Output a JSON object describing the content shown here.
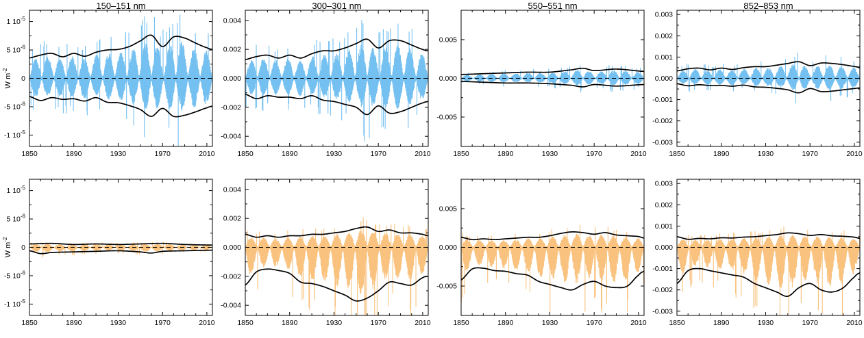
{
  "colors": {
    "top_fill": "#74c0f0",
    "bottom_fill": "#f9c27e",
    "envelope": "#000000",
    "zero_line": "#000000"
  },
  "column_titles": [
    "150–151 nm",
    "300–301 nm",
    "550–551 nm",
    "852–853 nm"
  ],
  "ylabel": {
    "text": "W m",
    "sup": "-2"
  },
  "chart_data": [
    {
      "type": "area",
      "row": 0,
      "col": 0,
      "title": "150–151 nm",
      "xlim": [
        1850,
        2015
      ],
      "ylim": [
        -1.2e-05,
        1.2e-05
      ],
      "xticks": [
        1850,
        1890,
        1930,
        1970,
        2010
      ],
      "yticks": [
        {
          "value": 1e-05,
          "base": "1 10",
          "exp": "-5"
        },
        {
          "value": 5e-06,
          "base": "5 10",
          "exp": "-6"
        },
        {
          "value": 0,
          "base": "0",
          "exp": ""
        },
        {
          "value": -5e-06,
          "base": "-5 10",
          "exp": "-6"
        },
        {
          "value": -1e-05,
          "base": "-1 10",
          "exp": "-5"
        }
      ],
      "upper_envelope": {
        "x": [
          1850,
          1860,
          1870,
          1880,
          1890,
          1900,
          1910,
          1920,
          1930,
          1940,
          1950,
          1960,
          1970,
          1980,
          1990,
          2000,
          2010,
          2015
        ],
        "y": [
          3.6e-06,
          4.1e-06,
          4.4e-06,
          3.8e-06,
          4.4e-06,
          3.9e-06,
          4.6e-06,
          5e-06,
          5.1e-06,
          5.6e-06,
          6.6e-06,
          7.6e-06,
          5.6e-06,
          7.3e-06,
          7.1e-06,
          6.2e-06,
          5.4e-06,
          5.1e-06
        ]
      },
      "lower_envelope": {
        "x": [
          1850,
          1860,
          1870,
          1880,
          1890,
          1900,
          1910,
          1920,
          1930,
          1940,
          1950,
          1960,
          1970,
          1980,
          1990,
          2000,
          2010,
          2015
        ],
        "y": [
          -3.2e-06,
          -3.9e-06,
          -3.4e-06,
          -3.7e-06,
          -3.6e-06,
          -4e-06,
          -3.4e-06,
          -4.2e-06,
          -4.3e-06,
          -4.8e-06,
          -5.5e-06,
          -6.7e-06,
          -5.3e-06,
          -6.7e-06,
          -6.5e-06,
          -5.9e-06,
          -5.2e-06,
          -4.9e-06
        ]
      },
      "fill_color": "#74c0f0"
    },
    {
      "type": "area",
      "row": 0,
      "col": 1,
      "title": "300–301 nm",
      "xlim": [
        1850,
        2015
      ],
      "ylim": [
        -0.0047,
        0.0047
      ],
      "xticks": [
        1850,
        1890,
        1930,
        1970,
        2010
      ],
      "yticks": [
        {
          "value": 0.004,
          "base": "0.004",
          "exp": ""
        },
        {
          "value": 0.002,
          "base": "0.002",
          "exp": ""
        },
        {
          "value": 0,
          "base": "0.000",
          "exp": ""
        },
        {
          "value": -0.002,
          "base": "-0.002",
          "exp": ""
        },
        {
          "value": -0.004,
          "base": "-0.004",
          "exp": ""
        }
      ],
      "upper_envelope": {
        "x": [
          1850,
          1860,
          1870,
          1880,
          1890,
          1900,
          1910,
          1920,
          1930,
          1940,
          1950,
          1960,
          1970,
          1980,
          1990,
          2000,
          2010,
          2015
        ],
        "y": [
          0.0013,
          0.0015,
          0.0016,
          0.0014,
          0.0016,
          0.0014,
          0.0017,
          0.0019,
          0.0019,
          0.0021,
          0.0024,
          0.0027,
          0.0021,
          0.0026,
          0.0026,
          0.0023,
          0.002,
          0.0019
        ]
      },
      "lower_envelope": {
        "x": [
          1850,
          1860,
          1870,
          1880,
          1890,
          1900,
          1910,
          1920,
          1930,
          1940,
          1950,
          1960,
          1970,
          1980,
          1990,
          2000,
          2010,
          2015
        ],
        "y": [
          -0.0011,
          -0.0014,
          -0.0012,
          -0.0013,
          -0.0013,
          -0.0014,
          -0.0012,
          -0.0015,
          -0.0016,
          -0.0018,
          -0.002,
          -0.0025,
          -0.0019,
          -0.0024,
          -0.0023,
          -0.002,
          -0.0017,
          -0.0016
        ]
      },
      "fill_color": "#74c0f0"
    },
    {
      "type": "area",
      "row": 0,
      "col": 2,
      "title": "550–551 nm",
      "xlim": [
        1850,
        2015
      ],
      "ylim": [
        -0.0088,
        0.0088
      ],
      "xticks": [
        1850,
        1890,
        1930,
        1970,
        2010
      ],
      "yticks": [
        {
          "value": 0.005,
          "base": "0.005",
          "exp": ""
        },
        {
          "value": 0,
          "base": "0.000",
          "exp": ""
        },
        {
          "value": -0.005,
          "base": "-0.005",
          "exp": ""
        }
      ],
      "upper_envelope": {
        "x": [
          1850,
          1870,
          1890,
          1910,
          1930,
          1950,
          1960,
          1970,
          1990,
          2015
        ],
        "y": [
          0.0005,
          0.0006,
          0.0007,
          0.0008,
          0.0008,
          0.0011,
          0.0013,
          0.001,
          0.0012,
          0.0009
        ]
      },
      "lower_envelope": {
        "x": [
          1850,
          1870,
          1890,
          1910,
          1930,
          1950,
          1960,
          1970,
          1990,
          2015
        ],
        "y": [
          -0.0004,
          -0.0005,
          -0.0006,
          -0.0006,
          -0.0007,
          -0.0009,
          -0.0011,
          -0.0008,
          -0.001,
          -0.0008
        ]
      },
      "fill_color": "#74c0f0"
    },
    {
      "type": "area",
      "row": 0,
      "col": 3,
      "title": "852–853 nm",
      "xlim": [
        1850,
        2015
      ],
      "ylim": [
        -0.0032,
        0.0032
      ],
      "xticks": [
        1850,
        1890,
        1930,
        1970,
        2010
      ],
      "yticks": [
        {
          "value": 0.003,
          "base": "0.003",
          "exp": ""
        },
        {
          "value": 0.002,
          "base": "0.002",
          "exp": ""
        },
        {
          "value": 0.001,
          "base": "0.001",
          "exp": ""
        },
        {
          "value": 0,
          "base": "0.000",
          "exp": ""
        },
        {
          "value": -0.001,
          "base": "-0.001",
          "exp": ""
        },
        {
          "value": -0.002,
          "base": "-0.002",
          "exp": ""
        },
        {
          "value": -0.003,
          "base": "-0.003",
          "exp": ""
        }
      ],
      "upper_envelope": {
        "x": [
          1850,
          1860,
          1870,
          1880,
          1890,
          1900,
          1910,
          1920,
          1930,
          1940,
          1950,
          1960,
          1970,
          1980,
          1990,
          2000,
          2010,
          2015
        ],
        "y": [
          0.00035,
          0.00045,
          0.00048,
          0.0004,
          0.00048,
          0.00042,
          0.0005,
          0.00055,
          0.00055,
          0.00062,
          0.0007,
          0.00078,
          0.0006,
          0.00072,
          0.0007,
          0.00064,
          0.00056,
          0.00052
        ]
      },
      "lower_envelope": {
        "x": [
          1850,
          1860,
          1870,
          1880,
          1890,
          1900,
          1910,
          1920,
          1930,
          1940,
          1950,
          1960,
          1970,
          1980,
          1990,
          2000,
          2010,
          2015
        ],
        "y": [
          -0.00025,
          -0.00035,
          -0.0003,
          -0.00034,
          -0.00033,
          -0.00037,
          -0.00032,
          -0.0004,
          -0.00042,
          -0.00047,
          -0.00054,
          -0.00068,
          -0.00048,
          -0.00062,
          -0.0006,
          -0.00054,
          -0.00048,
          -0.00045
        ]
      },
      "fill_color": "#74c0f0"
    },
    {
      "type": "area",
      "row": 1,
      "col": 0,
      "title": "",
      "xlim": [
        1850,
        2015
      ],
      "ylim": [
        -1.2e-05,
        1.2e-05
      ],
      "xticks": [
        1850,
        1890,
        1930,
        1970,
        2010
      ],
      "yticks": [
        {
          "value": 1e-05,
          "base": "1 10",
          "exp": "-5"
        },
        {
          "value": 5e-06,
          "base": "5 10",
          "exp": "-6"
        },
        {
          "value": 0,
          "base": "0",
          "exp": ""
        },
        {
          "value": -5e-06,
          "base": "-5 10",
          "exp": "-6"
        },
        {
          "value": -1e-05,
          "base": "-1 10",
          "exp": "-5"
        }
      ],
      "upper_envelope": {
        "x": [
          1850,
          1870,
          1890,
          1910,
          1930,
          1950,
          1970,
          1990,
          2015
        ],
        "y": [
          6e-07,
          7e-07,
          5e-07,
          6e-07,
          5e-07,
          6e-07,
          7e-07,
          5e-07,
          4e-07
        ]
      },
      "lower_envelope": {
        "x": [
          1850,
          1860,
          1870,
          1890,
          1910,
          1930,
          1950,
          1960,
          1970,
          1990,
          2015
        ],
        "y": [
          -6e-07,
          -1.1e-06,
          -9e-07,
          -8e-07,
          -7e-07,
          -6e-07,
          -8e-07,
          -1e-06,
          -7e-07,
          -6e-07,
          -5e-07
        ]
      },
      "fill_color": "#f9c27e"
    },
    {
      "type": "area",
      "row": 1,
      "col": 1,
      "title": "",
      "xlim": [
        1850,
        2015
      ],
      "ylim": [
        -0.0047,
        0.0047
      ],
      "xticks": [
        1850,
        1890,
        1930,
        1970,
        2010
      ],
      "yticks": [
        {
          "value": 0.004,
          "base": "0.004",
          "exp": ""
        },
        {
          "value": 0.002,
          "base": "0.002",
          "exp": ""
        },
        {
          "value": 0,
          "base": "0.000",
          "exp": ""
        },
        {
          "value": -0.002,
          "base": "-0.002",
          "exp": ""
        },
        {
          "value": -0.004,
          "base": "-0.004",
          "exp": ""
        }
      ],
      "upper_envelope": {
        "x": [
          1850,
          1860,
          1870,
          1880,
          1890,
          1900,
          1910,
          1920,
          1930,
          1940,
          1950,
          1960,
          1970,
          1980,
          1990,
          2000,
          2010,
          2015
        ],
        "y": [
          0.0009,
          0.0007,
          0.0008,
          0.0007,
          0.0008,
          0.0008,
          0.0009,
          0.0009,
          0.001,
          0.0011,
          0.0013,
          0.0014,
          0.0011,
          0.0012,
          0.001,
          0.001,
          0.0009,
          0.0008
        ]
      },
      "lower_envelope": {
        "x": [
          1850,
          1860,
          1870,
          1880,
          1890,
          1900,
          1910,
          1920,
          1930,
          1940,
          1950,
          1960,
          1970,
          1980,
          1990,
          2000,
          2010,
          2015
        ],
        "y": [
          -0.0026,
          -0.0017,
          -0.0015,
          -0.0016,
          -0.0018,
          -0.0024,
          -0.0025,
          -0.0027,
          -0.003,
          -0.0033,
          -0.0037,
          -0.0035,
          -0.003,
          -0.0024,
          -0.0025,
          -0.0026,
          -0.0021,
          -0.002
        ]
      },
      "fill_color": "#f9c27e"
    },
    {
      "type": "area",
      "row": 1,
      "col": 2,
      "title": "",
      "xlim": [
        1850,
        2015
      ],
      "ylim": [
        -0.0088,
        0.0088
      ],
      "xticks": [
        1850,
        1890,
        1930,
        1970,
        2010
      ],
      "yticks": [
        {
          "value": 0.005,
          "base": "0.005",
          "exp": ""
        },
        {
          "value": 0,
          "base": "0.000",
          "exp": ""
        },
        {
          "value": -0.005,
          "base": "-0.005",
          "exp": ""
        }
      ],
      "upper_envelope": {
        "x": [
          1850,
          1860,
          1870,
          1880,
          1890,
          1900,
          1910,
          1920,
          1930,
          1940,
          1950,
          1960,
          1970,
          1980,
          1990,
          2000,
          2010,
          2015
        ],
        "y": [
          0.0013,
          0.001,
          0.0011,
          0.001,
          0.0011,
          0.0012,
          0.0013,
          0.0013,
          0.0015,
          0.0018,
          0.002,
          0.0019,
          0.0017,
          0.0019,
          0.0016,
          0.0015,
          0.0014,
          0.0012
        ]
      },
      "lower_envelope": {
        "x": [
          1850,
          1860,
          1870,
          1880,
          1890,
          1900,
          1910,
          1920,
          1930,
          1940,
          1950,
          1960,
          1970,
          1980,
          1990,
          2000,
          2010,
          2015
        ],
        "y": [
          -0.0042,
          -0.0028,
          -0.0027,
          -0.003,
          -0.0031,
          -0.0034,
          -0.0036,
          -0.0044,
          -0.0048,
          -0.0052,
          -0.0055,
          -0.0048,
          -0.0044,
          -0.005,
          -0.0052,
          -0.005,
          -0.0036,
          -0.0031
        ]
      },
      "fill_color": "#f9c27e"
    },
    {
      "type": "area",
      "row": 1,
      "col": 3,
      "title": "",
      "xlim": [
        1850,
        2015
      ],
      "ylim": [
        -0.0032,
        0.0032
      ],
      "xticks": [
        1850,
        1890,
        1930,
        1970,
        2010
      ],
      "yticks": [
        {
          "value": 0.003,
          "base": "0.003",
          "exp": ""
        },
        {
          "value": 0.002,
          "base": "0.002",
          "exp": ""
        },
        {
          "value": 0.001,
          "base": "0.001",
          "exp": ""
        },
        {
          "value": 0,
          "base": "0.000",
          "exp": ""
        },
        {
          "value": -0.001,
          "base": "-0.001",
          "exp": ""
        },
        {
          "value": -0.002,
          "base": "-0.002",
          "exp": ""
        },
        {
          "value": -0.003,
          "base": "-0.003",
          "exp": ""
        }
      ],
      "upper_envelope": {
        "x": [
          1850,
          1860,
          1870,
          1880,
          1890,
          1900,
          1910,
          1920,
          1930,
          1940,
          1950,
          1960,
          1970,
          1980,
          1990,
          2000,
          2010,
          2015
        ],
        "y": [
          0.0005,
          0.00038,
          0.00042,
          0.0004,
          0.00045,
          0.00044,
          0.00048,
          0.0005,
          0.00055,
          0.0006,
          0.00068,
          0.00064,
          0.00056,
          0.0006,
          0.00054,
          0.00052,
          0.00048,
          0.00042
        ]
      },
      "lower_envelope": {
        "x": [
          1850,
          1860,
          1870,
          1880,
          1890,
          1900,
          1910,
          1920,
          1930,
          1940,
          1950,
          1960,
          1970,
          1980,
          1990,
          2000,
          2010,
          2015
        ],
        "y": [
          -0.0017,
          -0.0011,
          -0.001,
          -0.0011,
          -0.0012,
          -0.0013,
          -0.0014,
          -0.0017,
          -0.0019,
          -0.0021,
          -0.0023,
          -0.0019,
          -0.0017,
          -0.002,
          -0.0021,
          -0.0019,
          -0.0014,
          -0.0012
        ]
      },
      "fill_color": "#f9c27e"
    }
  ]
}
